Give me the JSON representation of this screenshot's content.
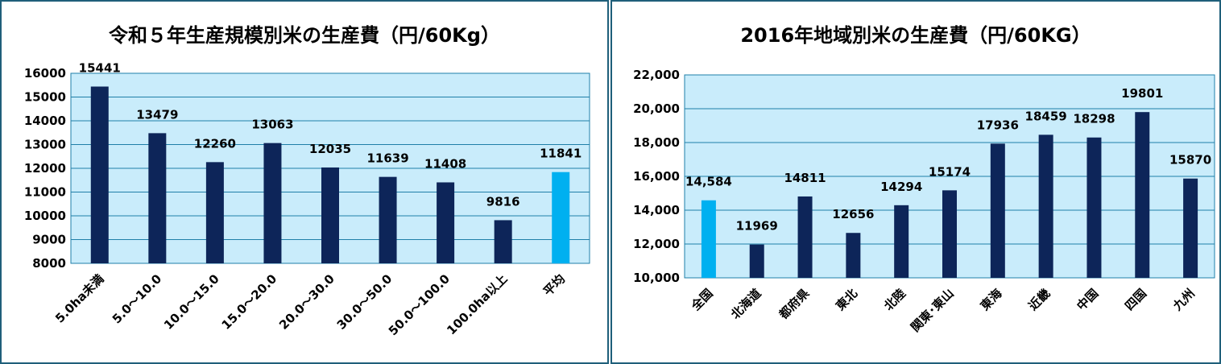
{
  "colors": {
    "plot_bg": "#c9ecfb",
    "grid": "#1f7fa8",
    "bar": "#0d2559",
    "bar_highlight": "#00b0f0",
    "frame": "#1f5f7a"
  },
  "chart_data": [
    {
      "type": "bar",
      "title": "令和５年生産規模別米の生産費（円/60Kg）",
      "categories": [
        "5.0ha未満",
        "5.0～10.0",
        "10.0～15.0",
        "15.0～20.0",
        "20.0～30.0",
        "30.0～50.0",
        "50.0～100.0",
        "100.0ha以上",
        "平均"
      ],
      "values": [
        15441,
        13479,
        12260,
        13063,
        12035,
        11639,
        11408,
        9816,
        11841
      ],
      "value_labels": [
        "15441",
        "13479",
        "12260",
        "13063",
        "12035",
        "11639",
        "11408",
        "9816",
        "11841"
      ],
      "highlight_index": 8,
      "ylim": [
        8000,
        16000
      ],
      "yticks": [
        8000,
        9000,
        10000,
        11000,
        12000,
        13000,
        14000,
        15000,
        16000
      ],
      "ytick_labels": [
        "8000",
        "9000",
        "10000",
        "11000",
        "12000",
        "13000",
        "14000",
        "15000",
        "16000"
      ],
      "grid": true
    },
    {
      "type": "bar",
      "title": "2016年地域別米の生産費（円/60KG）",
      "categories": [
        "全国",
        "北海道",
        "都府県",
        "東北",
        "北陸",
        "関東･東山",
        "東海",
        "近畿",
        "中国",
        "四国",
        "九州"
      ],
      "values": [
        14584,
        11969,
        14811,
        12656,
        14294,
        15174,
        17936,
        18459,
        18298,
        19801,
        15870
      ],
      "value_labels": [
        "14,584",
        "11969",
        "14811",
        "12656",
        "14294",
        "15174",
        "17936",
        "18459",
        "18298",
        "19801",
        "15870"
      ],
      "highlight_index": 0,
      "ylim": [
        10000,
        22000
      ],
      "yticks": [
        10000,
        12000,
        14000,
        16000,
        18000,
        20000,
        22000
      ],
      "ytick_labels": [
        "10,000",
        "12,000",
        "14,000",
        "16,000",
        "18,000",
        "20,000",
        "22,000"
      ],
      "grid": true
    }
  ]
}
